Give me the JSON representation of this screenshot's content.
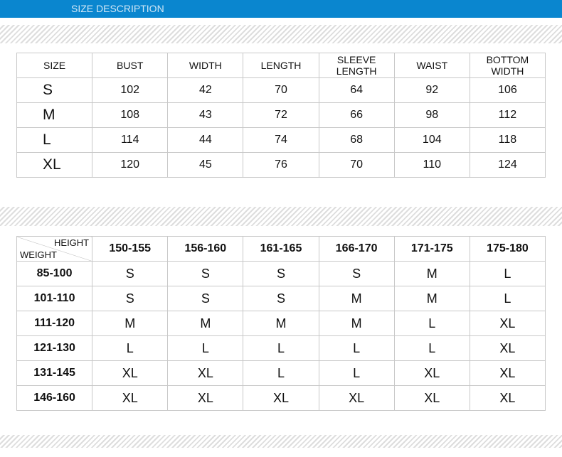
{
  "header": {
    "title": "SIZE DESCRIPTION"
  },
  "size_table": {
    "headers": [
      "SIZE",
      "BUST",
      "WIDTH",
      "LENGTH",
      "SLEEVE LENGTH",
      "WAIST",
      "BOTTOM WIDTH"
    ],
    "rows": [
      [
        "S",
        102,
        42,
        70,
        64,
        92,
        106
      ],
      [
        "M",
        108,
        43,
        72,
        66,
        98,
        112
      ],
      [
        "L",
        114,
        44,
        74,
        68,
        104,
        118
      ],
      [
        "XL",
        120,
        45,
        76,
        70,
        110,
        124
      ]
    ]
  },
  "fit_table": {
    "corner_top": "HEIGHT",
    "corner_bottom": "WEIGHT",
    "headers": [
      "150-155",
      "156-160",
      "161-165",
      "166-170",
      "171-175",
      "175-180"
    ],
    "rows": [
      [
        "85-100",
        "S",
        "S",
        "S",
        "S",
        "M",
        "L"
      ],
      [
        "101-110",
        "S",
        "S",
        "S",
        "M",
        "M",
        "L"
      ],
      [
        "111-120",
        "M",
        "M",
        "M",
        "M",
        "L",
        "XL"
      ],
      [
        "121-130",
        "L",
        "L",
        "L",
        "L",
        "L",
        "XL"
      ],
      [
        "131-145",
        "XL",
        "XL",
        "L",
        "L",
        "XL",
        "XL"
      ],
      [
        "146-160",
        "XL",
        "XL",
        "XL",
        "XL",
        "XL",
        "XL"
      ]
    ]
  }
}
